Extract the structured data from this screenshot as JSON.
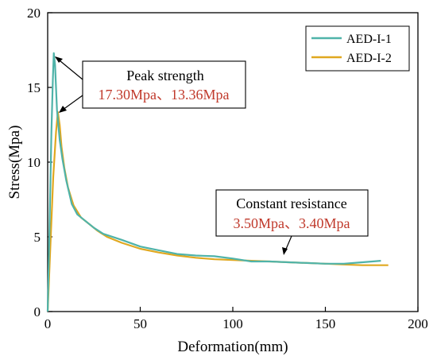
{
  "chart_data": {
    "type": "line",
    "title": "",
    "xlabel": "Deformation(mm)",
    "ylabel": "Stress(Mpa)",
    "xlim": [
      0,
      200
    ],
    "ylim": [
      0,
      20
    ],
    "xticks": [
      0,
      50,
      100,
      150,
      200
    ],
    "yticks": [
      0,
      5,
      10,
      15,
      20
    ],
    "grid": false,
    "legend_position": "top-right",
    "series": [
      {
        "name": "AED-I-1",
        "color": "#4fb3a9",
        "x": [
          0,
          1,
          2,
          2.8,
          3.3,
          4,
          5,
          6.5,
          8,
          10,
          13,
          16,
          20,
          25,
          30,
          40,
          50,
          60,
          70,
          80,
          90,
          100,
          110,
          120,
          130,
          140,
          150,
          160,
          170,
          180
        ],
        "y": [
          0,
          5.5,
          12,
          15.5,
          17.3,
          16.5,
          13.5,
          11.5,
          10.2,
          8.8,
          7.2,
          6.5,
          6.1,
          5.6,
          5.2,
          4.8,
          4.35,
          4.1,
          3.85,
          3.75,
          3.7,
          3.55,
          3.35,
          3.35,
          3.3,
          3.25,
          3.2,
          3.2,
          3.3,
          3.4
        ]
      },
      {
        "name": "AED-I-2",
        "color": "#e0a820",
        "x": [
          0,
          1.5,
          3,
          4.5,
          5.5,
          6.5,
          7.5,
          9,
          11,
          14,
          18,
          22,
          27,
          32,
          40,
          50,
          60,
          70,
          80,
          90,
          100,
          110,
          120,
          130,
          140,
          150,
          160,
          170,
          180,
          184
        ],
        "y": [
          0,
          4.5,
          9,
          12,
          13.36,
          12.5,
          11,
          9.6,
          8.3,
          7.1,
          6.3,
          5.9,
          5.4,
          5.0,
          4.6,
          4.2,
          3.95,
          3.75,
          3.6,
          3.5,
          3.45,
          3.4,
          3.35,
          3.3,
          3.25,
          3.2,
          3.15,
          3.1,
          3.1,
          3.1
        ]
      }
    ],
    "annotations": [
      {
        "title": "Peak strength",
        "value": "17.30Mpa、13.36Mpa",
        "value_color": "#c0392b"
      },
      {
        "title": "Constant resistance",
        "value": "3.50Mpa、3.40Mpa",
        "value_color": "#c0392b"
      }
    ]
  }
}
